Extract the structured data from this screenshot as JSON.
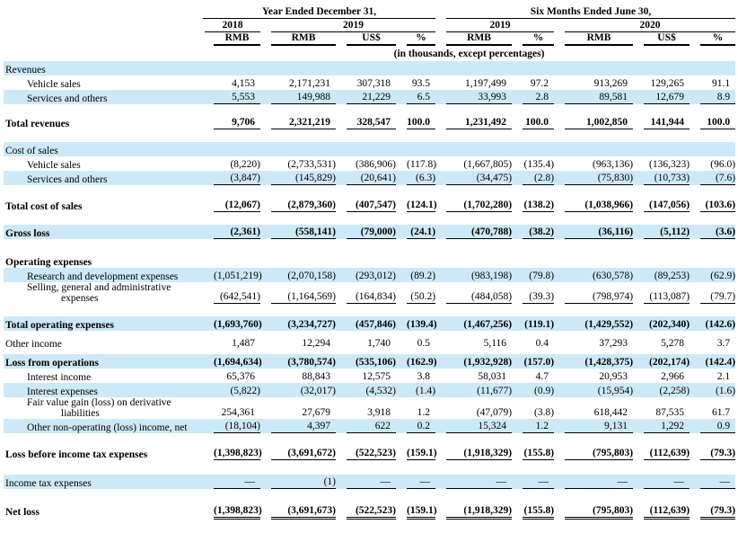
{
  "colors": {
    "highlight": "#cde9f7",
    "text": "#000000",
    "rule": "#000000"
  },
  "table": {
    "header": {
      "group1": "Year Ended December 31,",
      "group2": "Six Months Ended June 30,",
      "year_2018": "2018",
      "year_2019_annual": "2019",
      "year_2019_interim": "2019",
      "year_2020": "2020",
      "currency_labels": [
        "RMB",
        "RMB",
        "US$",
        "%",
        "RMB",
        "%",
        "RMB",
        "US$",
        "%"
      ],
      "note": "(in thousands, except percentages)"
    },
    "rows": [
      {
        "type": "section",
        "label": "Revenues",
        "bold": false,
        "highlight": true
      },
      {
        "type": "data",
        "label": "Vehicle sales",
        "indent": 1,
        "bold": false,
        "highlight": false,
        "rule": "none",
        "values": [
          "4,153",
          "2,171,231",
          "307,318",
          "93.5",
          "1,197,499",
          "97.2",
          "913,269",
          "129,265",
          "91.1"
        ]
      },
      {
        "type": "data",
        "label": "Services and others",
        "indent": 1,
        "bold": false,
        "highlight": true,
        "rule": "single",
        "values": [
          "5,553",
          "149,988",
          "21,229",
          "6.5",
          "33,993",
          "2.8",
          "89,581",
          "12,679",
          "8.9"
        ]
      },
      {
        "type": "spacer",
        "h": 12
      },
      {
        "type": "data",
        "label": "Total revenues",
        "indent": 0,
        "bold": true,
        "highlight": false,
        "rule": "single",
        "values": [
          "9,706",
          "2,321,219",
          "328,547",
          "100.0",
          "1,231,492",
          "100.0",
          "1,002,850",
          "141,944",
          "100.0"
        ]
      },
      {
        "type": "spacer",
        "h": 14
      },
      {
        "type": "section",
        "label": "Cost of sales",
        "bold": false,
        "highlight": true
      },
      {
        "type": "data",
        "label": "Vehicle sales",
        "indent": 1,
        "bold": false,
        "highlight": false,
        "rule": "none",
        "values": [
          "(8,220)",
          "(2,733,531)",
          "(386,906)",
          "(117.8)",
          "(1,667,805)",
          "(135.4)",
          "(963,136)",
          "(136,323)",
          "(96.0)"
        ]
      },
      {
        "type": "data",
        "label": "Services and others",
        "indent": 1,
        "bold": false,
        "highlight": true,
        "rule": "single",
        "values": [
          "(3,847)",
          "(145,829)",
          "(20,641)",
          "(6.3)",
          "(34,475)",
          "(2.8)",
          "(75,830)",
          "(10,733)",
          "(7.6)"
        ]
      },
      {
        "type": "spacer",
        "h": 14
      },
      {
        "type": "data",
        "label": "Total cost of sales",
        "indent": 0,
        "bold": true,
        "highlight": false,
        "rule": "single",
        "values": [
          "(12,067)",
          "(2,879,360)",
          "(407,547)",
          "(124.1)",
          "(1,702,280)",
          "(138.2)",
          "(1,038,966)",
          "(147,056)",
          "(103.6)"
        ]
      },
      {
        "type": "spacer",
        "h": 14
      },
      {
        "type": "data",
        "label": "Gross loss",
        "indent": 0,
        "bold": true,
        "highlight": true,
        "rule": "single",
        "values": [
          "(2,361)",
          "(558,141)",
          "(79,000)",
          "(24.1)",
          "(470,788)",
          "(38.2)",
          "(36,116)",
          "(5,112)",
          "(3.6)"
        ]
      },
      {
        "type": "spacer",
        "h": 16
      },
      {
        "type": "section",
        "label": "Operating expenses",
        "bold": true,
        "highlight": false
      },
      {
        "type": "data",
        "label": "Research and development expenses",
        "indent": 1,
        "bold": false,
        "highlight": true,
        "rule": "none",
        "values": [
          "(1,051,219)",
          "(2,070,158)",
          "(293,012)",
          "(89.2)",
          "(983,198)",
          "(79.8)",
          "(630,578)",
          "(89,253)",
          "(62.9)"
        ]
      },
      {
        "type": "data",
        "label": "Selling, general and administrative",
        "label2": "expenses",
        "indent": 1,
        "bold": false,
        "highlight": false,
        "rule": "single",
        "values": [
          "(642,541)",
          "(1,164,569)",
          "(164,834)",
          "(50.2)",
          "(484,058)",
          "(39.3)",
          "(798,974)",
          "(113,087)",
          "(79.7)"
        ]
      },
      {
        "type": "spacer",
        "h": 14
      },
      {
        "type": "data",
        "label": "Total operating expenses",
        "indent": 0,
        "bold": true,
        "highlight": true,
        "rule": "none",
        "values": [
          "(1,693,760)",
          "(3,234,727)",
          "(457,846)",
          "(139.4)",
          "(1,467,256)",
          "(119.1)",
          "(1,429,552)",
          "(202,340)",
          "(142.6)"
        ]
      },
      {
        "type": "spacer",
        "h": 5
      },
      {
        "type": "data",
        "label": "Other income",
        "indent": 0,
        "bold": false,
        "highlight": false,
        "rule": "none",
        "values": [
          "1,487",
          "12,294",
          "1,740",
          "0.5",
          "5,116",
          "0.4",
          "37,293",
          "5,278",
          "3.7"
        ]
      },
      {
        "type": "spacer",
        "h": 5
      },
      {
        "type": "data",
        "label": "Loss from operations",
        "indent": 0,
        "bold": true,
        "highlight": true,
        "rule": "none",
        "values": [
          "(1,694,634)",
          "(3,780,574)",
          "(535,106)",
          "(162.9)",
          "(1,932,928)",
          "(157.0)",
          "(1,428,375)",
          "(202,174)",
          "(142.4)"
        ]
      },
      {
        "type": "data",
        "label": "Interest income",
        "indent": 1,
        "bold": false,
        "highlight": false,
        "rule": "none",
        "values": [
          "65,376",
          "88,843",
          "12,575",
          "3.8",
          "58,031",
          "4.7",
          "20,953",
          "2,966",
          "2.1"
        ]
      },
      {
        "type": "data",
        "label": "Interest expenses",
        "indent": 1,
        "bold": false,
        "highlight": true,
        "rule": "none",
        "values": [
          "(5,822)",
          "(32,017)",
          "(4,532)",
          "(1.4)",
          "(11,677)",
          "(0.9)",
          "(15,954)",
          "(2,258)",
          "(1.6)"
        ]
      },
      {
        "type": "data",
        "label": "Fair value gain (loss) on derivative",
        "label2": "liabilities",
        "indent": 1,
        "bold": false,
        "highlight": false,
        "rule": "none",
        "values": [
          "254,361",
          "27,679",
          "3,918",
          "1.2",
          "(47,079)",
          "(3.8)",
          "618,442",
          "87,535",
          "61.7"
        ]
      },
      {
        "type": "data",
        "label": "Other non-operating (loss) income, net",
        "indent": 1,
        "bold": false,
        "highlight": true,
        "rule": "single",
        "values": [
          "(18,104)",
          "4,397",
          "622",
          "0.2",
          "15,324",
          "1.2",
          "9,131",
          "1,292",
          "0.9"
        ]
      },
      {
        "type": "spacer",
        "h": 14
      },
      {
        "type": "data",
        "label": "Loss before income tax expenses",
        "indent": 0,
        "bold": true,
        "highlight": false,
        "rule": "single",
        "values": [
          "(1,398,823)",
          "(3,691,672)",
          "(522,523)",
          "(159.1)",
          "(1,918,329)",
          "(155.8)",
          "(795,803)",
          "(112,639)",
          "(79.3)"
        ]
      },
      {
        "type": "spacer",
        "h": 16
      },
      {
        "type": "data",
        "label": "Income tax expenses",
        "indent": 0,
        "bold": false,
        "highlight": true,
        "rule": "single",
        "values": [
          "—",
          "(1)",
          "—",
          "—",
          "—",
          "—",
          "—",
          "—",
          "—"
        ]
      },
      {
        "type": "spacer",
        "h": 16
      },
      {
        "type": "data",
        "label": "Net loss",
        "indent": 0,
        "bold": true,
        "highlight": false,
        "rule": "double",
        "values": [
          "(1,398,823)",
          "(3,691,673)",
          "(522,523)",
          "(159.1)",
          "(1,918,329)",
          "(155.8)",
          "(795,803)",
          "(112,639)",
          "(79.3)"
        ]
      }
    ]
  }
}
